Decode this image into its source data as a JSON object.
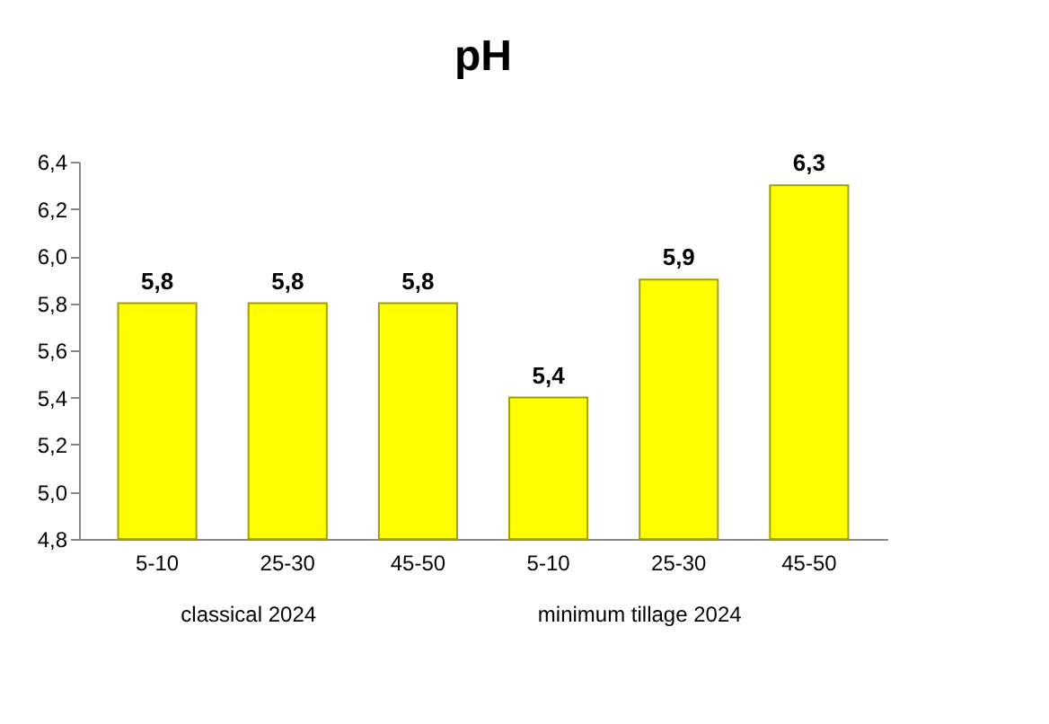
{
  "chart_data": {
    "type": "bar",
    "title": "pH",
    "categories": [
      "5-10",
      "25-30",
      "45-50",
      "5-10",
      "25-30",
      "45-50"
    ],
    "values": [
      5.8,
      5.8,
      5.8,
      5.4,
      5.9,
      6.3
    ],
    "value_labels": [
      "5,8",
      "5,8",
      "5,8",
      "5,4",
      "5,9",
      "6,3"
    ],
    "color": "#ffff00",
    "ylim": [
      4.8,
      6.4
    ],
    "yticks": [
      {
        "value": 4.8,
        "label": "4,8"
      },
      {
        "value": 5.0,
        "label": "5,0"
      },
      {
        "value": 5.2,
        "label": "5,2"
      },
      {
        "value": 5.4,
        "label": "5,4"
      },
      {
        "value": 5.6,
        "label": "5,6"
      },
      {
        "value": 5.8,
        "label": "5,8"
      },
      {
        "value": 6.0,
        "label": "6,0"
      },
      {
        "value": 6.2,
        "label": "6,2"
      },
      {
        "value": 6.4,
        "label": "6,4"
      }
    ],
    "annotations": [
      "classical  2024",
      "minimum tillage 2024"
    ],
    "grid": false
  }
}
